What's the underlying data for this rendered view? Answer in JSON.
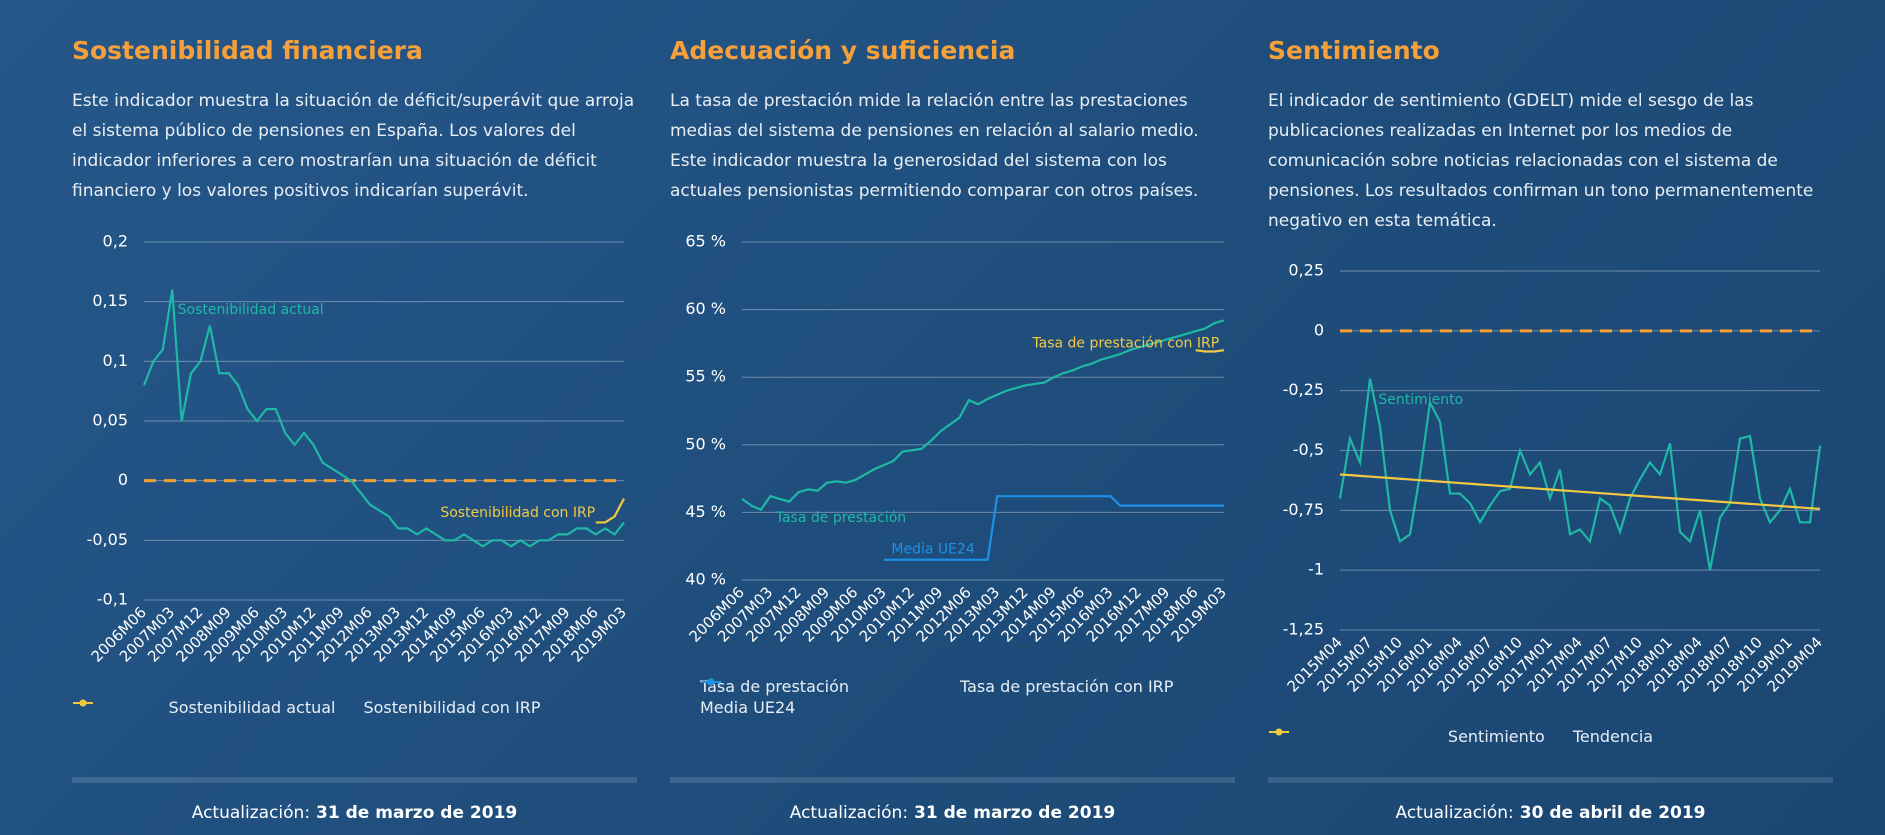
{
  "chart_data": [
    {
      "type": "line",
      "title": "Sostenibilidad financiera",
      "subtitle": "Este indicador muestra la situación de déficit/superávit que arroja el sistema público de pensiones en España. Los valores del indicador inferiores a cero mostrarían una situación de déficit financiero y los valores positivos indicarían superávit.",
      "categories": [
        "2006M06",
        null,
        null,
        "2007M03",
        null,
        null,
        "2007M12",
        null,
        null,
        "2008M09",
        null,
        null,
        "2009M06",
        null,
        null,
        "2010M03",
        null,
        null,
        "2010M12",
        null,
        null,
        "2011M09",
        null,
        null,
        "2012M06",
        null,
        null,
        "2013M03",
        null,
        null,
        "2013M12",
        null,
        null,
        "2014M09",
        null,
        null,
        "2015M06",
        null,
        null,
        "2016M03",
        null,
        null,
        "2016M12",
        null,
        null,
        "2017M09",
        null,
        null,
        "2018M06",
        null,
        null,
        "2019M03"
      ],
      "series": [
        {
          "name": "Sostenibilidad actual",
          "color": "#1fb8a6",
          "values": [
            0.08,
            0.1,
            0.11,
            0.16,
            0.05,
            0.09,
            0.1,
            0.13,
            0.09,
            0.09,
            0.08,
            0.06,
            0.05,
            0.06,
            0.06,
            0.04,
            0.03,
            0.04,
            0.03,
            0.015,
            0.01,
            0.005,
            0,
            -0.01,
            -0.02,
            -0.025,
            -0.03,
            -0.04,
            -0.04,
            -0.045,
            -0.04,
            -0.045,
            -0.05,
            -0.05,
            -0.045,
            -0.05,
            -0.055,
            -0.05,
            -0.05,
            -0.055,
            -0.05,
            -0.055,
            -0.05,
            -0.05,
            -0.045,
            -0.045,
            -0.04,
            -0.04,
            -0.045,
            -0.04,
            -0.045,
            -0.035
          ]
        },
        {
          "name": "Sostenibilidad con IRP",
          "color": "#f5c842",
          "values": [
            null,
            null,
            null,
            null,
            null,
            null,
            null,
            null,
            null,
            null,
            null,
            null,
            null,
            null,
            null,
            null,
            null,
            null,
            null,
            null,
            null,
            null,
            null,
            null,
            null,
            null,
            null,
            null,
            null,
            null,
            null,
            null,
            null,
            null,
            null,
            null,
            null,
            null,
            null,
            null,
            null,
            null,
            null,
            null,
            null,
            null,
            null,
            null,
            -0.035,
            -0.035,
            -0.03,
            -0.015
          ]
        }
      ],
      "ylim": [
        -0.1,
        0.2
      ],
      "yticks": [
        {
          "value": -0.1,
          "label": "-0,1"
        },
        {
          "value": -0.05,
          "label": "-0,05"
        },
        0,
        {
          "value": 0.05,
          "label": "0,05"
        },
        {
          "value": 0.1,
          "label": "0,1"
        },
        {
          "value": 0.15,
          "label": "0,15"
        },
        {
          "value": 0.2,
          "label": "0,2"
        }
      ],
      "grid": true,
      "reference_line": {
        "value": 0,
        "color": "#f5a030",
        "dashed": true
      },
      "update_label": "Actualización:",
      "update_date": "31 de marzo de 2019"
    },
    {
      "type": "line",
      "title": "Adecuación y suficiencia",
      "subtitle": "La tasa de prestación mide la relación entre las prestaciones medias del sistema de pensiones en relación al salario medio. Este indicador muestra la generosidad del sistema con los actuales pensionistas permitiendo comparar con otros países.",
      "categories": [
        "2006M06",
        null,
        null,
        "2007M03",
        null,
        null,
        "2007M12",
        null,
        null,
        "2008M09",
        null,
        null,
        "2009M06",
        null,
        null,
        "2010M03",
        null,
        null,
        "2010M12",
        null,
        null,
        "2011M09",
        null,
        null,
        "2012M06",
        null,
        null,
        "2013M03",
        null,
        null,
        "2013M12",
        null,
        null,
        "2014M09",
        null,
        null,
        "2015M06",
        null,
        null,
        "2016M03",
        null,
        null,
        "2016M12",
        null,
        null,
        "2017M09",
        null,
        null,
        "2018M06",
        null,
        null,
        "2019M03"
      ],
      "series": [
        {
          "name": "Tasa de prestación",
          "color": "#1fb8a6",
          "values": [
            46,
            45.5,
            45.2,
            46.2,
            46,
            45.8,
            46.5,
            46.7,
            46.6,
            47.2,
            47.3,
            47.2,
            47.4,
            47.8,
            48.2,
            48.5,
            48.8,
            49.5,
            49.6,
            49.7,
            50.3,
            51,
            51.5,
            52,
            53.3,
            53,
            53.4,
            53.7,
            54,
            54.2,
            54.4,
            54.5,
            54.6,
            55,
            55.3,
            55.5,
            55.8,
            56,
            56.3,
            56.5,
            56.7,
            57,
            57.2,
            57.4,
            57.6,
            57.8,
            58,
            58.2,
            58.4,
            58.6,
            59,
            59.2
          ]
        },
        {
          "name": "Tasa de prestación con IRP",
          "color": "#f5c842",
          "values": [
            null,
            null,
            null,
            null,
            null,
            null,
            null,
            null,
            null,
            null,
            null,
            null,
            null,
            null,
            null,
            null,
            null,
            null,
            null,
            null,
            null,
            null,
            null,
            null,
            null,
            null,
            null,
            null,
            null,
            null,
            null,
            null,
            null,
            null,
            null,
            null,
            null,
            null,
            null,
            null,
            null,
            null,
            null,
            null,
            null,
            null,
            null,
            null,
            57,
            56.9,
            56.9,
            57
          ]
        },
        {
          "name": "Media UE24",
          "color": "#1e90e6",
          "values": [
            null,
            null,
            null,
            null,
            null,
            null,
            null,
            null,
            null,
            null,
            null,
            null,
            null,
            null,
            null,
            41.5,
            41.5,
            41.5,
            41.5,
            41.5,
            41.5,
            41.5,
            41.5,
            41.5,
            41.5,
            41.5,
            41.5,
            46.2,
            46.2,
            46.2,
            46.2,
            46.2,
            46.2,
            46.2,
            46.2,
            46.2,
            46.2,
            46.2,
            46.2,
            46.2,
            45.5,
            45.5,
            45.5,
            45.5,
            45.5,
            45.5,
            45.5,
            45.5,
            45.5,
            45.5,
            45.5,
            45.5
          ]
        }
      ],
      "ylim": [
        40,
        65
      ],
      "yticks": [
        {
          "value": 40,
          "label": "40 %"
        },
        {
          "value": 45,
          "label": "45 %"
        },
        {
          "value": 50,
          "label": "50 %"
        },
        {
          "value": 55,
          "label": "55 %"
        },
        {
          "value": 60,
          "label": "60 %"
        },
        {
          "value": 65,
          "label": "65 %"
        }
      ],
      "grid": true,
      "update_label": "Actualización:",
      "update_date": "31 de marzo de 2019"
    },
    {
      "type": "line",
      "title": "Sentimiento",
      "subtitle": "El indicador de sentimiento (GDELT) mide el sesgo de las publicaciones realizadas en Internet por los medios de comunicación sobre noticias relacionadas con el sistema de pensiones. Los resultados confirman un tono permanentemente negativo en esta temática.",
      "categories": [
        "2015M04",
        null,
        null,
        "2015M07",
        null,
        null,
        "2015M10",
        null,
        null,
        "2016M01",
        null,
        null,
        "2016M04",
        null,
        null,
        "2016M07",
        null,
        null,
        "2016M10",
        null,
        null,
        "2017M01",
        null,
        null,
        "2017M04",
        null,
        null,
        "2017M07",
        null,
        null,
        "2017M10",
        null,
        null,
        "2018M01",
        null,
        null,
        "2018M04",
        null,
        null,
        "2018M07",
        null,
        null,
        "2018M10",
        null,
        null,
        "2019M01",
        null,
        null,
        "2019M04"
      ],
      "series": [
        {
          "name": "Sentimiento",
          "color": "#1fb8a6",
          "values": [
            -0.7,
            -0.45,
            -0.55,
            -0.2,
            -0.4,
            -0.75,
            -0.88,
            -0.85,
            -0.6,
            -0.3,
            -0.38,
            -0.68,
            -0.68,
            -0.72,
            -0.8,
            -0.73,
            -0.67,
            -0.66,
            -0.5,
            -0.6,
            -0.55,
            -0.7,
            -0.58,
            -0.85,
            -0.83,
            -0.88,
            -0.7,
            -0.73,
            -0.84,
            -0.7,
            -0.62,
            -0.55,
            -0.6,
            -0.47,
            -0.84,
            -0.88,
            -0.75,
            -1,
            -0.78,
            -0.72,
            -0.45,
            -0.44,
            -0.7,
            -0.8,
            -0.75,
            -0.66,
            -0.8,
            -0.8,
            -0.48
          ]
        },
        {
          "name": "Tendencia",
          "color": "#f5c842",
          "values": [
            -0.6,
            -0.603,
            -0.606,
            -0.609,
            -0.612,
            -0.615,
            -0.618,
            -0.621,
            -0.624,
            -0.627,
            -0.63,
            -0.633,
            -0.636,
            -0.639,
            -0.642,
            -0.645,
            -0.648,
            -0.651,
            -0.654,
            -0.657,
            -0.66,
            -0.663,
            -0.666,
            -0.669,
            -0.672,
            -0.675,
            -0.678,
            -0.681,
            -0.684,
            -0.687,
            -0.69,
            -0.693,
            -0.696,
            -0.699,
            -0.702,
            -0.705,
            -0.708,
            -0.711,
            -0.714,
            -0.717,
            -0.72,
            -0.723,
            -0.726,
            -0.729,
            -0.732,
            -0.735,
            -0.738,
            -0.741,
            -0.744
          ]
        }
      ],
      "ylim": [
        -1.25,
        0.25
      ],
      "yticks": [
        {
          "value": -1.25,
          "label": "-1,25"
        },
        -1,
        {
          "value": -0.75,
          "label": "-0,75"
        },
        {
          "value": -0.5,
          "label": "-0,5"
        },
        {
          "value": -0.25,
          "label": "-0,25"
        },
        0,
        {
          "value": 0.25,
          "label": "0,25"
        }
      ],
      "grid": true,
      "reference_line": {
        "value": 0,
        "color": "#f5a030",
        "dashed": true
      },
      "update_label": "Actualización:",
      "update_date": "30 de abril de 2019"
    }
  ]
}
